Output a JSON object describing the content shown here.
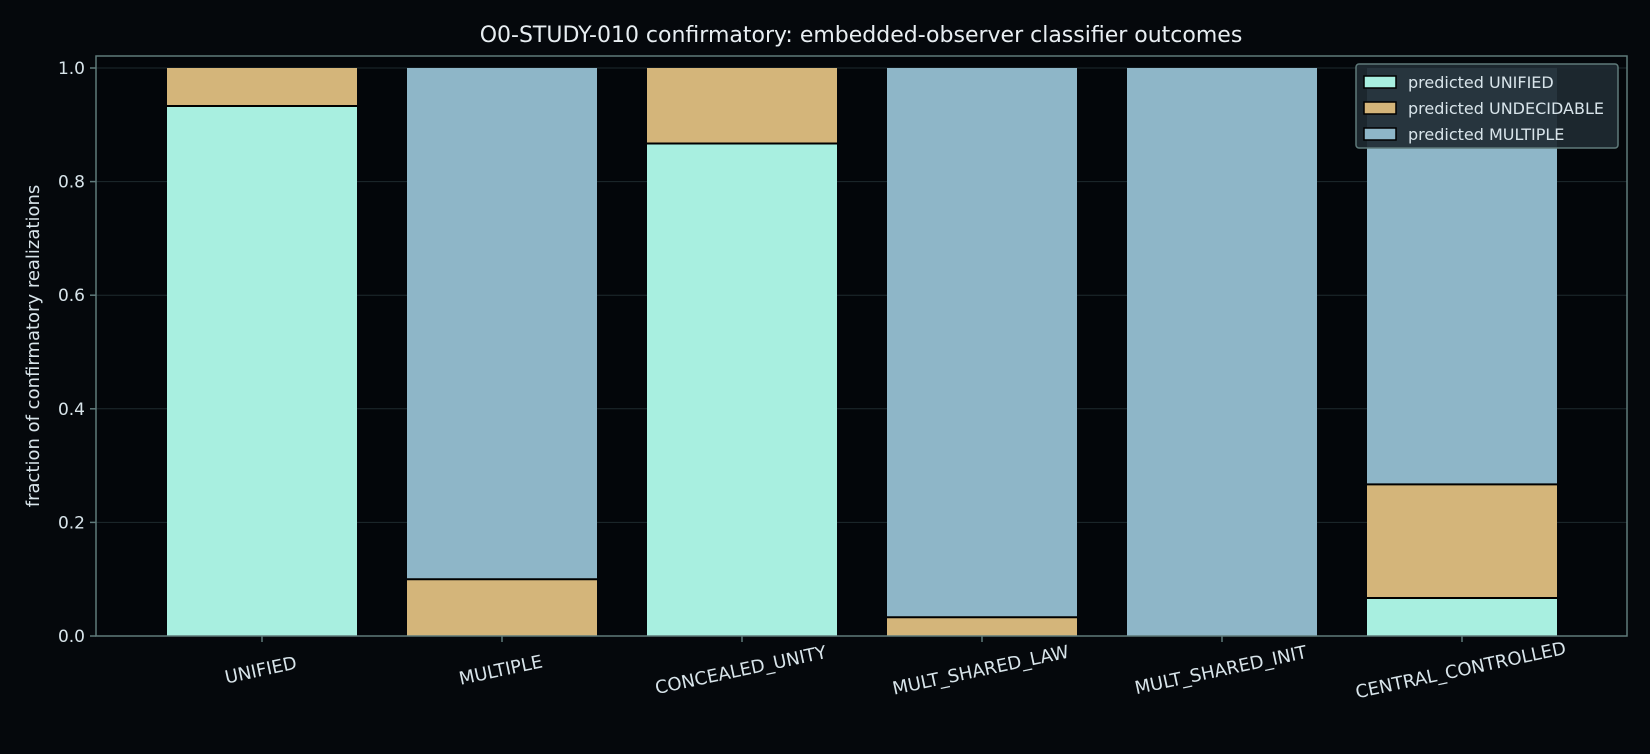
{
  "chart_data": {
    "type": "bar",
    "stacked": true,
    "title": "O0-STUDY-010 confirmatory: embedded-observer classifier outcomes",
    "xlabel": "",
    "ylabel": "fraction of confirmatory realizations",
    "ylim": [
      0,
      1.0
    ],
    "yticks": [
      "0.0",
      "0.2",
      "0.4",
      "0.6",
      "0.8",
      "1.0"
    ],
    "grid": true,
    "legend_position": "top-right",
    "categories": [
      "UNIFIED",
      "MULTIPLE",
      "CONCEALED_UNITY",
      "MULT_SHARED_LAW",
      "MULT_SHARED_INIT",
      "CENTRAL_CONTROLLED"
    ],
    "series": [
      {
        "name": "predicted UNIFIED",
        "color": "#a8efe0",
        "values": [
          0.933,
          0.0,
          0.867,
          0.0,
          0.0,
          0.067
        ]
      },
      {
        "name": "predicted UNDECIDABLE",
        "color": "#d4b57a",
        "values": [
          0.067,
          0.1,
          0.133,
          0.033,
          0.0,
          0.2
        ]
      },
      {
        "name": "predicted MULTIPLE",
        "color": "#8eb6c8",
        "values": [
          0.0,
          0.9,
          0.0,
          0.967,
          1.0,
          0.733
        ]
      }
    ]
  },
  "colors": {
    "background": "#05080c",
    "plot_background": "#03060a",
    "axis": "#5f7a7a",
    "text": "#d8e4ea",
    "grid": "#1e2a2e",
    "legend_background": "#1e2a32"
  }
}
